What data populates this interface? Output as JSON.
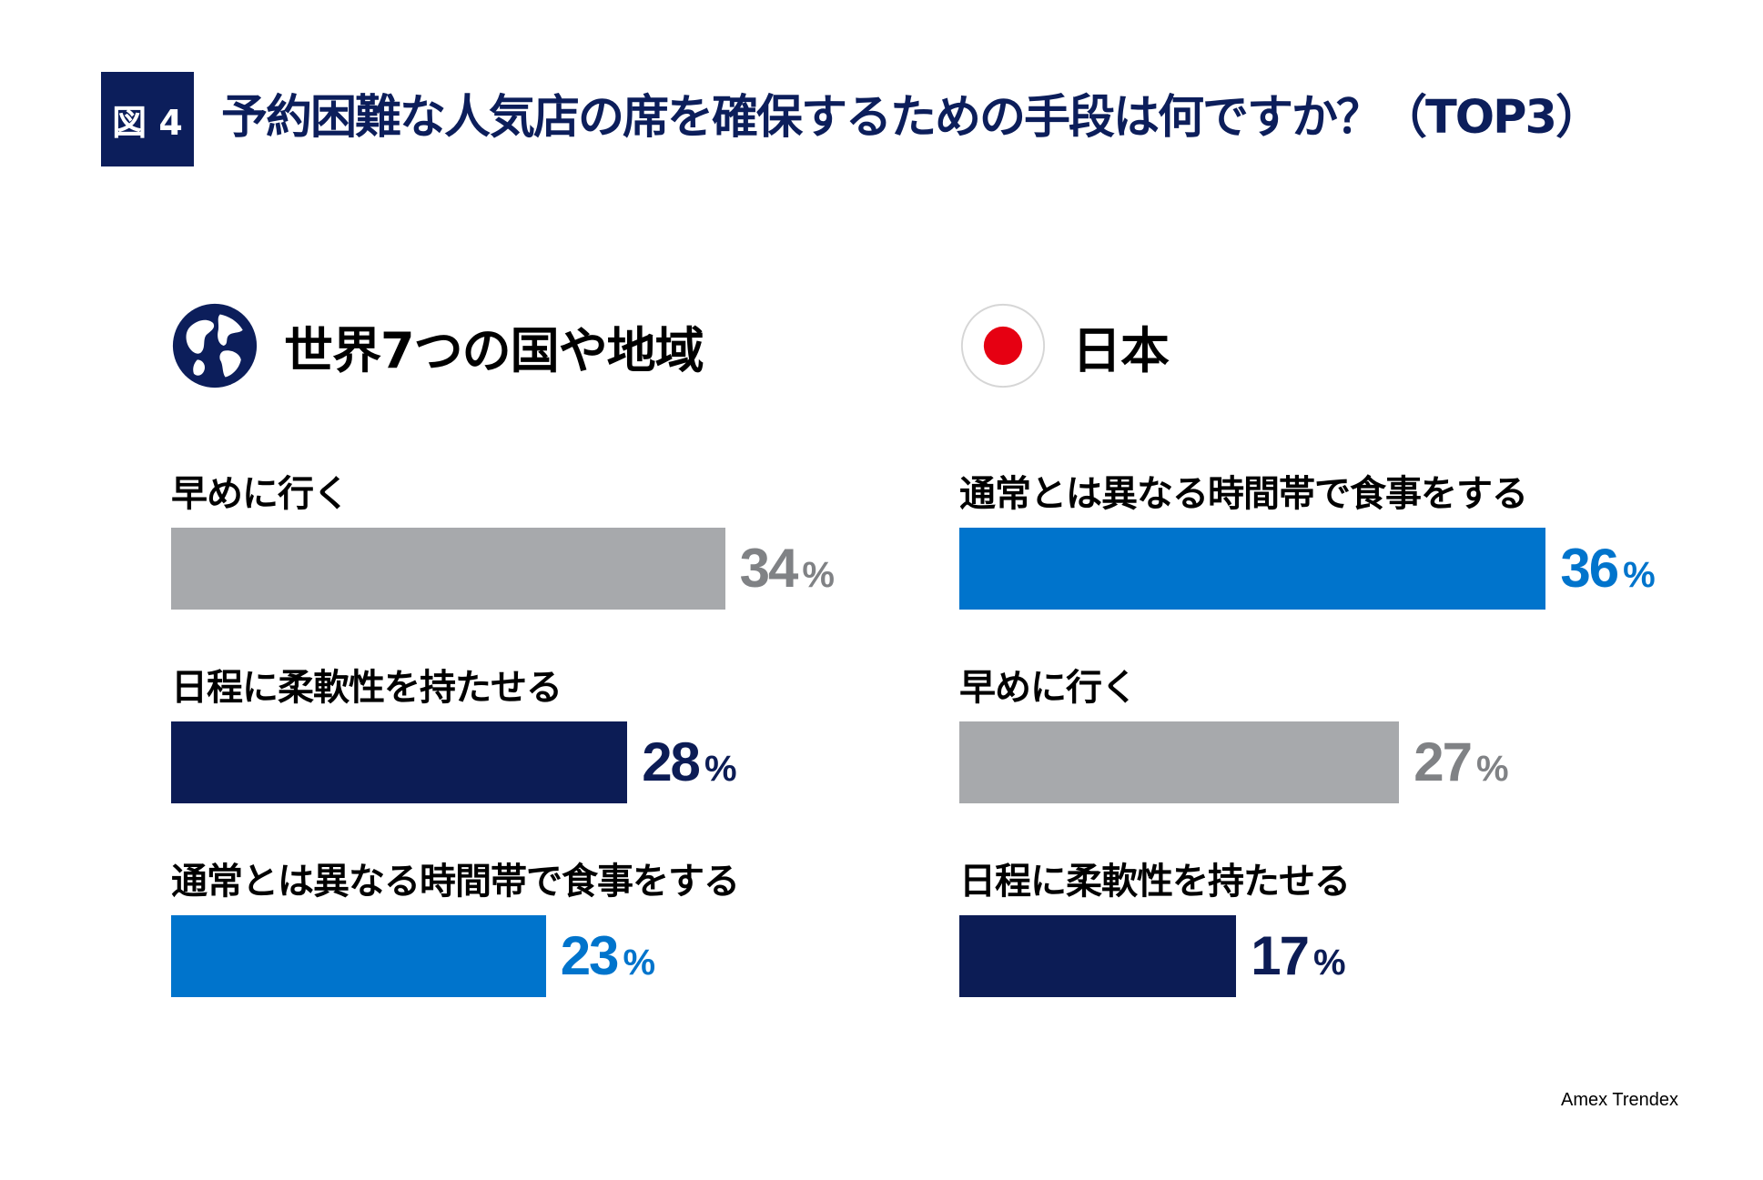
{
  "figure": {
    "badge": "図 4",
    "title": "予約困難な人気店の席を確保するための手段は何ですか？（TOP3）"
  },
  "chart_data": [
    {
      "type": "bar",
      "orientation": "horizontal",
      "title": "世界7つの国や地域",
      "icon": "globe-icon",
      "unit": "%",
      "categories": [
        "早めに行く",
        "日程に柔軟性を持たせる",
        "通常とは異なる時間帯で食事をする"
      ],
      "values": [
        34,
        28,
        23
      ],
      "colors": [
        "#a7a9ac",
        "#0c1c55",
        "#0074cc"
      ],
      "value_label_colors": [
        "#808285",
        "#0c1c55",
        "#0074cc"
      ]
    },
    {
      "type": "bar",
      "orientation": "horizontal",
      "title": "日本",
      "icon": "japan-flag-icon",
      "unit": "%",
      "categories": [
        "通常とは異なる時間帯で食事をする",
        "早めに行く",
        "日程に柔軟性を持たせる"
      ],
      "values": [
        36,
        27,
        17
      ],
      "colors": [
        "#0074cc",
        "#a7a9ac",
        "#0c1c55"
      ],
      "value_label_colors": [
        "#0074cc",
        "#808285",
        "#0c1c55"
      ]
    }
  ],
  "source": "Amex Trendex"
}
